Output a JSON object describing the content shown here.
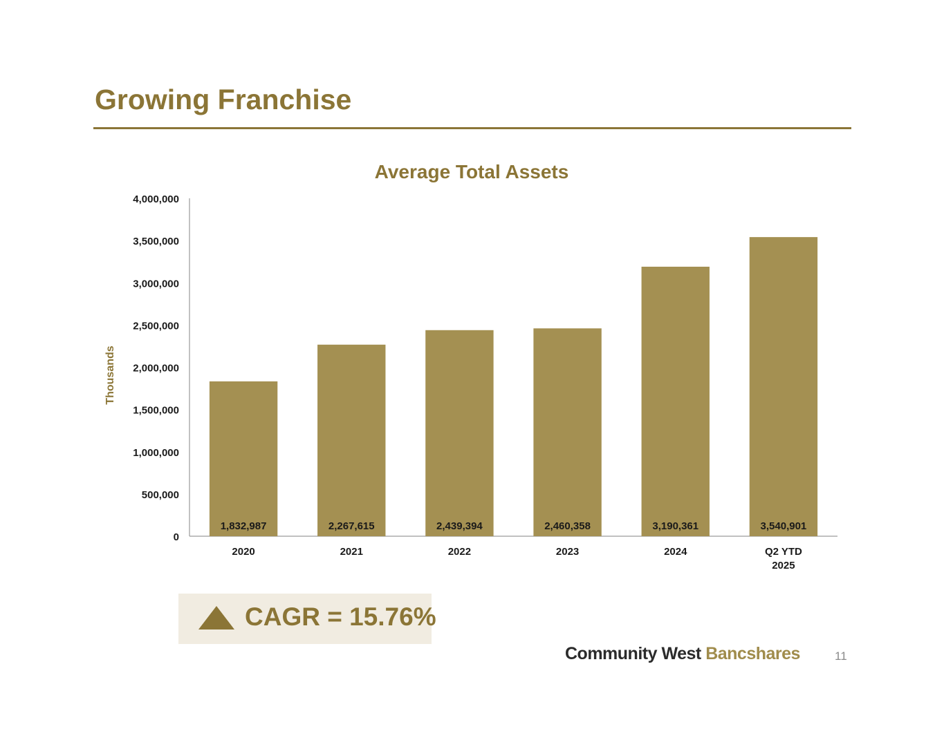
{
  "slide": {
    "title": "Growing Franchise",
    "page_number": "11"
  },
  "callout": {
    "text": "CAGR = 15.76%",
    "icon": "up-triangle-icon"
  },
  "brand": {
    "part1": "Community West",
    "part2": "Bancshares"
  },
  "colors": {
    "accent": "#8b7536",
    "bar": "#a49052",
    "callout_bg": "#f1ece1"
  },
  "chart_data": {
    "type": "bar",
    "title": "Average Total Assets",
    "ylabel": "Thousands",
    "xlabel": "",
    "categories": [
      "2020",
      "2021",
      "2022",
      "2023",
      "2024",
      "Q2 YTD 2025"
    ],
    "values": [
      1832987,
      2267615,
      2439394,
      2460358,
      3190361,
      3540901
    ],
    "data_labels": [
      "1,832,987",
      "2,267,615",
      "2,439,394",
      "2,460,358",
      "3,190,361",
      "3,540,901"
    ],
    "yticks": [
      "0",
      "500,000",
      "1,000,000",
      "1,500,000",
      "2,000,000",
      "2,500,000",
      "3,000,000",
      "3,500,000",
      "4,000,000"
    ],
    "ylim": [
      0,
      4000000
    ],
    "grid": false,
    "legend": "none"
  }
}
